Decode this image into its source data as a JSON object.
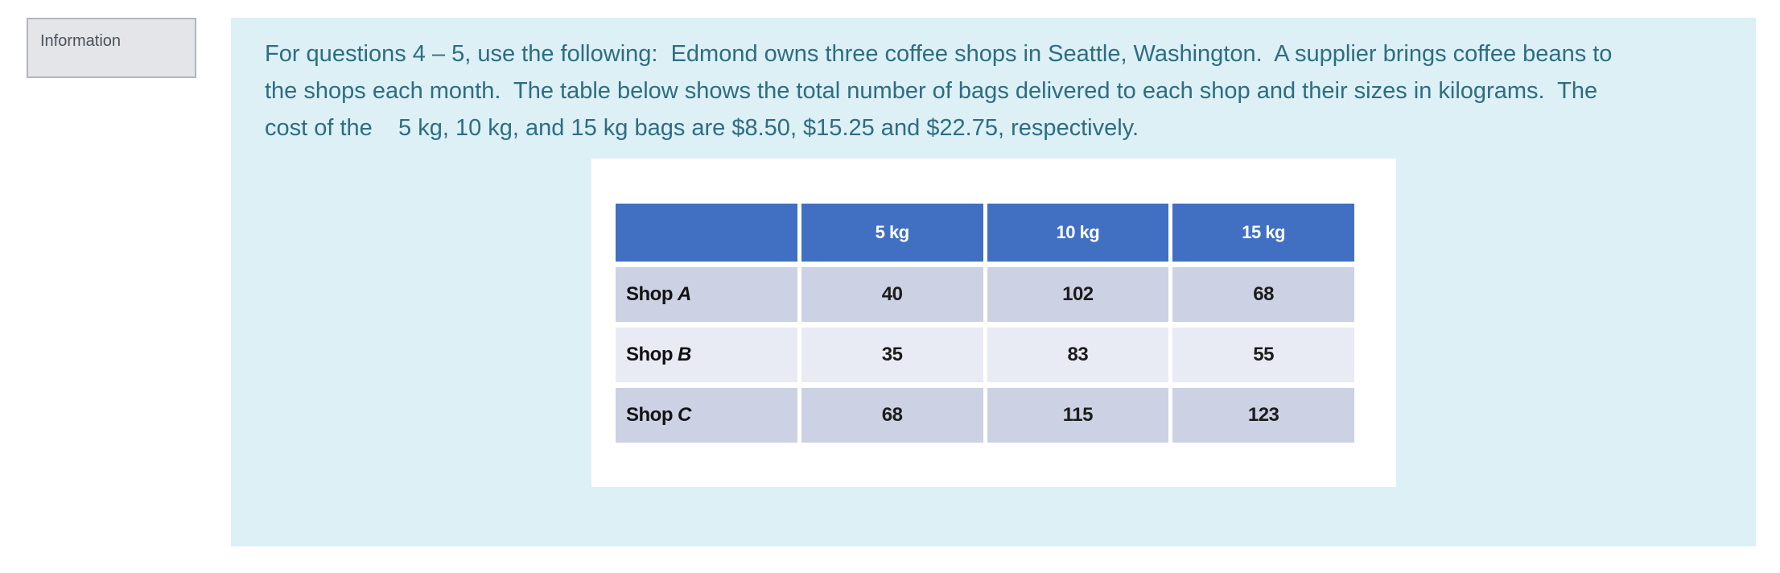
{
  "info_tab": {
    "label": "Information"
  },
  "passage": {
    "lines": [
      "For questions 4 – 5, use the following:  Edmond owns three coffee shops in Seattle, Washington.  A supplier brings coffee beans to",
      "the shops each month.  The table below shows the total number of bags delivered to each shop and their sizes in kilograms.  The",
      "cost of the    5 kg, 10 kg, and 15 kg bags are $8.50, $15.25 and $22.75, respectively."
    ]
  },
  "table": {
    "headers": [
      "",
      "5 kg",
      "10 kg",
      "15 kg"
    ],
    "rows": [
      {
        "label_prefix": "Shop",
        "letter": "A",
        "values": [
          "40",
          "102",
          "68"
        ]
      },
      {
        "label_prefix": "Shop",
        "letter": "B",
        "values": [
          "35",
          "83",
          "55"
        ]
      },
      {
        "label_prefix": "Shop",
        "letter": "C",
        "values": [
          "68",
          "115",
          "123"
        ]
      }
    ]
  },
  "colors": {
    "panel_bg": "#dcf0f6",
    "header_bg": "#4170c2",
    "row_dark": "#ccd2e4",
    "row_light": "#e9ebf4",
    "passage_text": "#2e6d81",
    "info_tab_bg": "#e3e5e8",
    "info_tab_border": "#b3b6ba"
  }
}
